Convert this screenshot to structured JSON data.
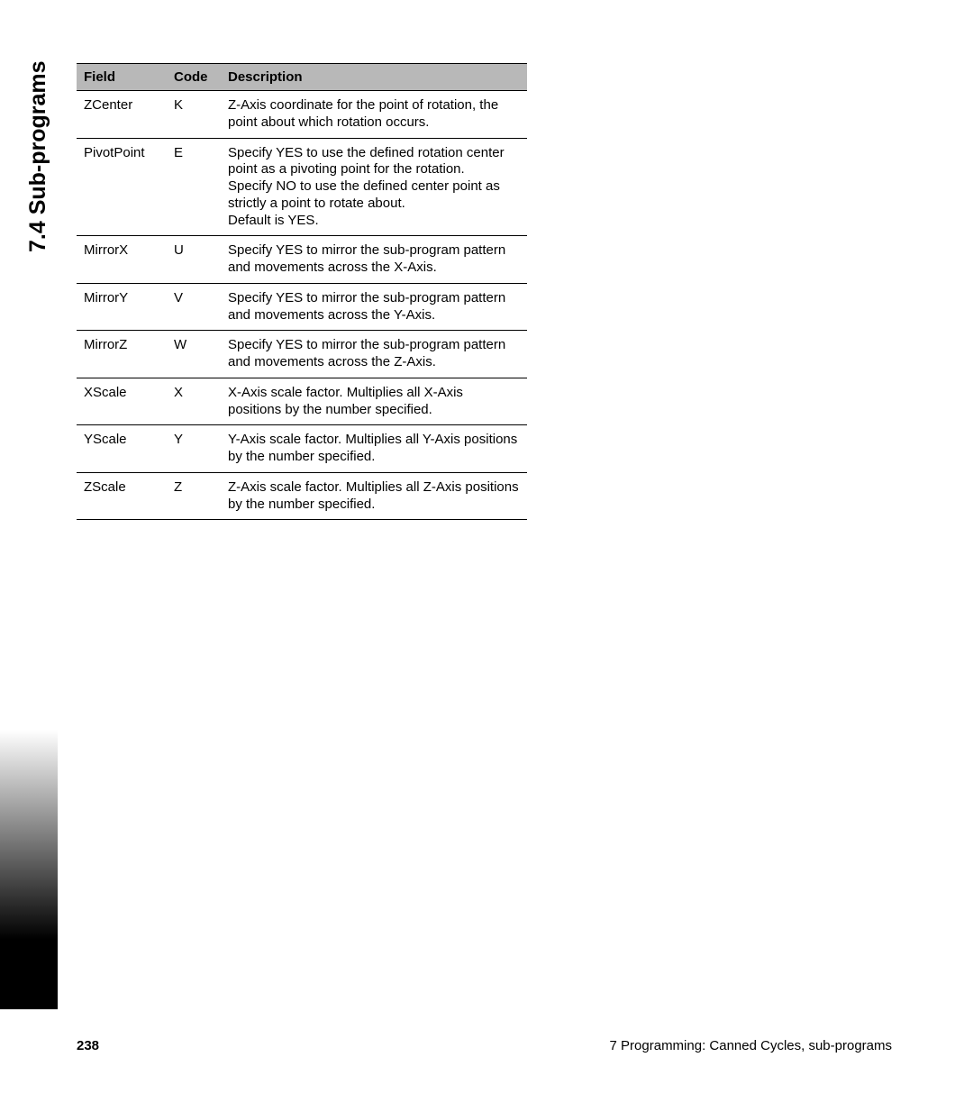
{
  "side_title": "7.4 Sub-programs",
  "table": {
    "columns": [
      "Field",
      "Code",
      "Description"
    ],
    "rows": [
      {
        "field": "ZCenter",
        "code": "K",
        "description": "Z-Axis coordinate for the point of rotation, the point about which rotation occurs."
      },
      {
        "field": "PivotPoint",
        "code": "E",
        "description": "Specify YES to use the defined rotation center point as a pivoting point for the rotation.\nSpecify NO to use the defined center point as strictly a point to rotate about.\nDefault is YES."
      },
      {
        "field": "MirrorX",
        "code": "U",
        "description": "Specify YES to mirror the sub-program pattern and movements across the X-Axis."
      },
      {
        "field": "MirrorY",
        "code": "V",
        "description": "Specify YES to mirror the sub-program pattern and movements across the Y-Axis."
      },
      {
        "field": "MirrorZ",
        "code": "W",
        "description": "Specify YES to mirror the sub-program pattern and movements across the Z-Axis."
      },
      {
        "field": "XScale",
        "code": "X",
        "description": "X-Axis scale factor. Multiplies all X-Axis positions by the number specified."
      },
      {
        "field": "YScale",
        "code": "Y",
        "description": "Y-Axis scale factor. Multiplies all Y-Axis positions by the number specified."
      },
      {
        "field": "ZScale",
        "code": "Z",
        "description": "Z-Axis scale factor. Multiplies all Z-Axis positions by the number specified."
      }
    ]
  },
  "page_number": "238",
  "footer_text": "7 Programming: Canned Cycles, sub-programs"
}
